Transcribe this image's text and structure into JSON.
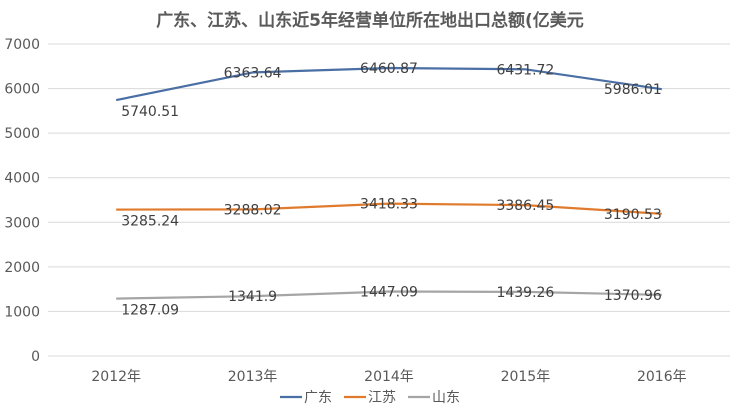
{
  "chart_data": {
    "type": "line",
    "title": "广东、江苏、山东近5年经营单位所在地出口总额(亿美元",
    "categories": [
      "2012年",
      "2013年",
      "2014年",
      "2015年",
      "2016年"
    ],
    "ylim": [
      0,
      7000
    ],
    "yticks": [
      0,
      1000,
      2000,
      3000,
      4000,
      5000,
      6000,
      7000
    ],
    "grid": true,
    "legend": "bottom",
    "series": [
      {
        "name": "广东",
        "color": "#4a6fa5",
        "values": [
          5740.51,
          6363.64,
          6460.87,
          6431.72,
          5986.01
        ],
        "labels": [
          "5740.51",
          "6363.64",
          "6460.87",
          "6431.72",
          "5986.01"
        ]
      },
      {
        "name": "江苏",
        "color": "#e07b2e",
        "values": [
          3285.24,
          3288.02,
          3418.33,
          3386.45,
          3190.53
        ],
        "labels": [
          "3285.24",
          "3288.02",
          "3418.33",
          "3386.45",
          "3190.53"
        ]
      },
      {
        "name": "山东",
        "color": "#a5a5a5",
        "values": [
          1287.09,
          1341.9,
          1447.09,
          1439.26,
          1370.96
        ],
        "labels": [
          "1287.09",
          "1341.9",
          "1447.09",
          "1439.26",
          "1370.96"
        ]
      }
    ]
  }
}
